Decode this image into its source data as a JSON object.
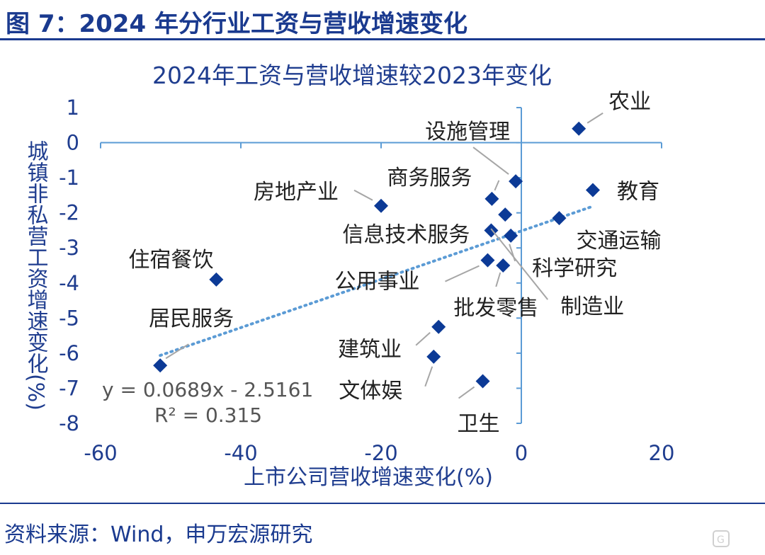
{
  "header": {
    "figure_title": "图 7：2024 年分行业工资与营收增速变化",
    "source": "资料来源：Wind，申万宏源研究",
    "watermark": "格隆汇"
  },
  "colors": {
    "brand_blue": "#1a3a8f",
    "marker": "#0c3a96",
    "axis_line": "#5b9bd5",
    "trendline": "#5b9bd5",
    "leader_line": "#a6a6a6"
  },
  "chart_data": {
    "type": "scatter",
    "title": "2024年工资与营收增速较2023年变化",
    "xlabel": "上市公司营收增速变化(%)",
    "ylabel": "城镇非私营工资增速变化(%)",
    "xlim": [
      -60,
      20
    ],
    "ylim": [
      -8,
      1
    ],
    "x_ticks": [
      "-60",
      "-40",
      "-20",
      "0",
      "20"
    ],
    "y_ticks": [
      "1",
      "0",
      "-1",
      "-2",
      "-3",
      "-4",
      "-5",
      "-6",
      "-7",
      "-8"
    ],
    "grid": false,
    "trendline": {
      "type": "linear",
      "slope": 0.0689,
      "intercept": -2.5161,
      "equation": "y = 0.0689x - 2.5161",
      "r_squared": "R² = 0.315"
    },
    "points": [
      {
        "label": "农业",
        "x": 8.2,
        "y": 0.4
      },
      {
        "label": "设施管理",
        "x": -0.8,
        "y": -1.1
      },
      {
        "label": "教育",
        "x": 10.2,
        "y": -1.35
      },
      {
        "label": "商务服务",
        "x": -4.2,
        "y": -1.6
      },
      {
        "label": "房地产业",
        "x": -20.0,
        "y": -1.8
      },
      {
        "label": "交通运输",
        "x": 5.4,
        "y": -2.15
      },
      {
        "label": "信息技术服务",
        "x": -4.3,
        "y": -2.5
      },
      {
        "label": "科学研究",
        "x": -1.5,
        "y": -2.65
      },
      {
        "label": "制造业",
        "x": -2.3,
        "y": -2.05
      },
      {
        "label": "公用事业",
        "x": -4.8,
        "y": -3.35
      },
      {
        "label": "批发零售",
        "x": -2.6,
        "y": -3.5
      },
      {
        "label": "住宿餐饮",
        "x": -43.5,
        "y": -3.9
      },
      {
        "label": "建筑业",
        "x": -11.8,
        "y": -5.25
      },
      {
        "label": "文体娱",
        "x": -12.5,
        "y": -6.1
      },
      {
        "label": "卫生",
        "x": -5.5,
        "y": -6.8
      },
      {
        "label": "居民服务",
        "x": -51.5,
        "y": -6.35
      }
    ]
  }
}
